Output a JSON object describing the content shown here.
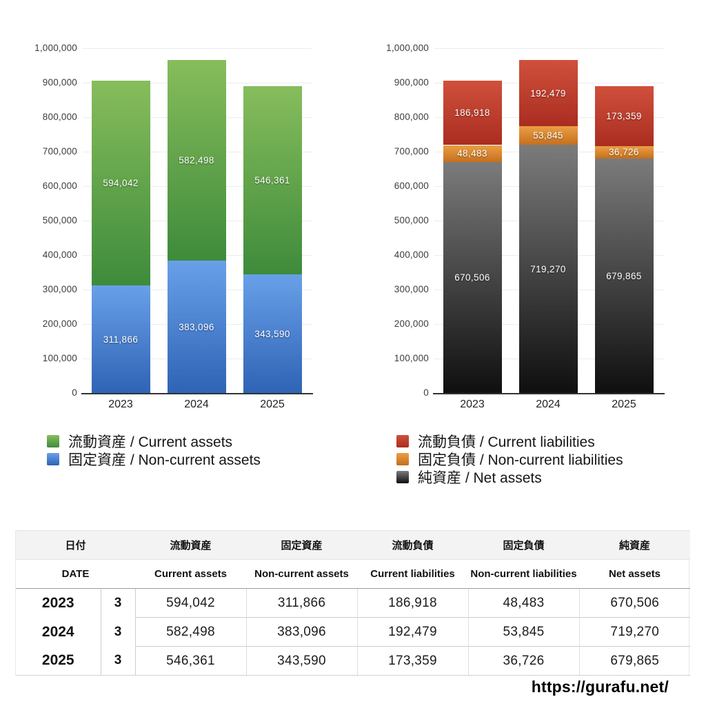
{
  "chart_data": [
    {
      "type": "bar",
      "subtype": "stacked",
      "name": "assets-stacked-bar",
      "categories": [
        "2023",
        "2024",
        "2025"
      ],
      "ylim": [
        0,
        1000000
      ],
      "ytick_step": 100000,
      "ytick_labels": [
        "0",
        "100,000",
        "200,000",
        "300,000",
        "400,000",
        "500,000",
        "600,000",
        "700,000",
        "800,000",
        "900,000",
        "1,000,000"
      ],
      "grid": "horizontal",
      "legend_position": "bottom-left",
      "series": [
        {
          "name": "流動資産 / Current assets",
          "values": [
            594042,
            582498,
            546361
          ],
          "value_labels": [
            "594,042",
            "582,498",
            "546,361"
          ],
          "color_top": "#87bd5c",
          "color_bottom": "#3e8b3b"
        },
        {
          "name": "固定資産 / Non-current assets",
          "values": [
            311866,
            383096,
            343590
          ],
          "value_labels": [
            "311,866",
            "383,096",
            "343,590"
          ],
          "color_top": "#68a0e8",
          "color_bottom": "#2f63b5"
        }
      ]
    },
    {
      "type": "bar",
      "subtype": "stacked",
      "name": "liabilities-net-assets-stacked-bar",
      "categories": [
        "2023",
        "2024",
        "2025"
      ],
      "ylim": [
        0,
        1000000
      ],
      "ytick_step": 100000,
      "ytick_labels": [
        "0",
        "100,000",
        "200,000",
        "300,000",
        "400,000",
        "500,000",
        "600,000",
        "700,000",
        "800,000",
        "900,000",
        "1,000,000"
      ],
      "grid": "horizontal",
      "legend_position": "bottom-left",
      "series": [
        {
          "name": "流動負債 / Current liabilities",
          "values": [
            186918,
            192479,
            173359
          ],
          "value_labels": [
            "186,918",
            "192,479",
            "173,359"
          ],
          "color_top": "#d0503c",
          "color_bottom": "#aa2d20"
        },
        {
          "name": "固定負債 / Non-current liabilities",
          "values": [
            48483,
            53845,
            36726
          ],
          "value_labels": [
            "48,483",
            "53,845",
            "36,726"
          ],
          "color_top": "#eb9e44",
          "color_bottom": "#c56f1e"
        },
        {
          "name": "純資産 / Net assets",
          "values": [
            670506,
            719270,
            679865
          ],
          "value_labels": [
            "670,506",
            "719,270",
            "679,865"
          ],
          "color_top": "#7b7b7b",
          "color_bottom": "#0f0f0f"
        }
      ]
    }
  ],
  "table": {
    "header_jp": {
      "date": "日付",
      "cols": [
        "流動資産",
        "固定資産",
        "流動負債",
        "固定負債",
        "純資産"
      ]
    },
    "header_en": {
      "date": "DATE",
      "cols": [
        "Current assets",
        "Non-current assets",
        "Current liabilities",
        "Non-current liabilities",
        "Net assets"
      ]
    },
    "rows": [
      {
        "year": "2023",
        "month": "3",
        "values": [
          "594,042",
          "311,866",
          "186,918",
          "48,483",
          "670,506"
        ]
      },
      {
        "year": "2024",
        "month": "3",
        "values": [
          "582,498",
          "383,096",
          "192,479",
          "53,845",
          "719,270"
        ]
      },
      {
        "year": "2025",
        "month": "3",
        "values": [
          "546,361",
          "343,590",
          "173,359",
          "36,726",
          "679,865"
        ]
      }
    ]
  },
  "footer": {
    "url": "https://gurafu.net/"
  }
}
